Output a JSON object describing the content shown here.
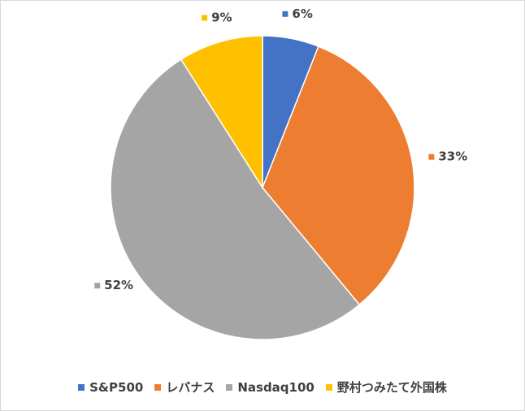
{
  "chart_data": {
    "type": "pie",
    "title": "",
    "categories": [
      "S&P500",
      "レバナス",
      "Nasdaq100",
      "野村つみたて外国株"
    ],
    "values": [
      6,
      33,
      52,
      9
    ],
    "labels": [
      "6%",
      "33%",
      "52%",
      "9%"
    ],
    "colors": [
      "#4472C4",
      "#ED7D31",
      "#A5A5A5",
      "#FFC000"
    ],
    "legend_position": "bottom",
    "start_angle": "12 o'clock, clockwise"
  }
}
